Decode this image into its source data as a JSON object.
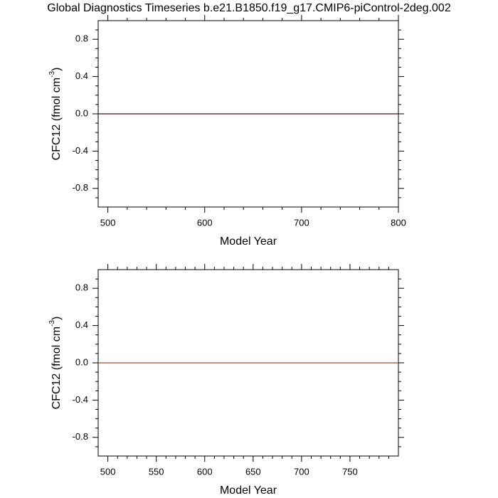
{
  "title": "Global Diagnostics Timeseries b.e21.B1850.f19_g17.CMIP6-piControl-2deg.002",
  "chart_data": [
    {
      "type": "line",
      "xlabel": "Model Year",
      "ylabel": {
        "text": "CFC12 (fmol cm",
        "sup": "-3",
        "close": ")"
      },
      "xlim": [
        490,
        800
      ],
      "ylim": [
        -1,
        1
      ],
      "xticks": [
        500,
        600,
        700,
        800
      ],
      "xminor": [
        520,
        540,
        560,
        580,
        620,
        640,
        660,
        680,
        720,
        740,
        760,
        780
      ],
      "yticks": [
        0.8,
        0.4,
        0.0,
        -0.4,
        -0.8
      ],
      "yminor": [
        -0.9,
        -0.7,
        -0.6,
        -0.5,
        -0.3,
        -0.2,
        -0.1,
        0.1,
        0.2,
        0.3,
        0.5,
        0.6,
        0.7,
        0.9
      ],
      "series": [
        {
          "color": "#3a1010",
          "x": [
            490,
            800
          ],
          "values": [
            0,
            0
          ]
        }
      ]
    },
    {
      "type": "line",
      "xlabel": "Model Year",
      "ylabel": {
        "text": "CFC12 (fmol cm",
        "sup": "-3",
        "close": ")"
      },
      "xlim": [
        490,
        800
      ],
      "ylim": [
        -1,
        1
      ],
      "xticks": [
        500,
        550,
        600,
        650,
        700,
        750
      ],
      "xminor": [
        510,
        520,
        530,
        540,
        560,
        570,
        580,
        590,
        610,
        620,
        630,
        640,
        660,
        670,
        680,
        690,
        710,
        720,
        730,
        740,
        760,
        770,
        780,
        790
      ],
      "yticks": [
        0.8,
        0.4,
        0.0,
        -0.4,
        -0.8
      ],
      "yminor": [
        -0.9,
        -0.7,
        -0.6,
        -0.5,
        -0.3,
        -0.2,
        -0.1,
        0.1,
        0.2,
        0.3,
        0.5,
        0.6,
        0.7,
        0.9
      ],
      "series": [
        {
          "color": "#a0522d",
          "x": [
            490,
            800
          ],
          "values": [
            0,
            0
          ]
        }
      ]
    }
  ]
}
